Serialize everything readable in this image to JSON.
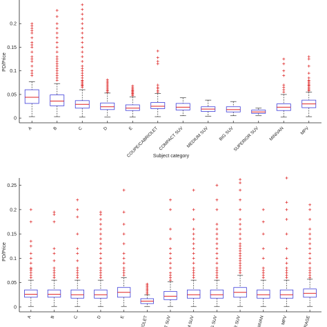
{
  "colors": {
    "box": "#3b3bd9",
    "median": "#e02020",
    "whisker": "#333333",
    "outlier": "#dd2020",
    "axis": "#222222"
  },
  "chart_data": [
    {
      "type": "box",
      "title": "",
      "xlabel": "Subject category",
      "ylabel": "PD/Price",
      "ylim": [
        -0.01,
        0.25
      ],
      "yticks": [
        0,
        0.05,
        0.1,
        0.15,
        0.2
      ],
      "ytick_labels": [
        "0",
        "0.05",
        "0.1",
        "0.15",
        "0.2"
      ],
      "grid": false,
      "categories": [
        "A",
        "B",
        "C",
        "D",
        "E",
        "COUPE/CABRIOLET",
        "COMPACT SUV",
        "MEDIUM SUV",
        "BIG SUV",
        "SUPERIOR SUV",
        "MINIVAN",
        "MPV"
      ],
      "boxes": [
        {
          "whislo": 0.003,
          "q1": 0.031,
          "med": 0.044,
          "q3": 0.06,
          "whishi": 0.077,
          "fliers": [
            0.09,
            0.095,
            0.1,
            0.11,
            0.12,
            0.125,
            0.13,
            0.14,
            0.15,
            0.155,
            0.16,
            0.17,
            0.18,
            0.185,
            0.19,
            0.195,
            0.2
          ]
        },
        {
          "whislo": 0.003,
          "q1": 0.026,
          "med": 0.036,
          "q3": 0.049,
          "whishi": 0.073,
          "fliers": [
            0.08,
            0.085,
            0.09,
            0.095,
            0.1,
            0.105,
            0.11,
            0.115,
            0.12,
            0.125,
            0.13,
            0.14,
            0.15,
            0.16,
            0.17,
            0.18,
            0.19,
            0.2,
            0.215,
            0.228
          ]
        },
        {
          "whislo": 0.002,
          "q1": 0.021,
          "med": 0.029,
          "q3": 0.037,
          "whishi": 0.06,
          "fliers": [
            0.065,
            0.068,
            0.07,
            0.072,
            0.075,
            0.078,
            0.08,
            0.085,
            0.09,
            0.095,
            0.1,
            0.105,
            0.11,
            0.12,
            0.13,
            0.14,
            0.15,
            0.16,
            0.17,
            0.18,
            0.19,
            0.2,
            0.21,
            0.22,
            0.23,
            0.24
          ]
        },
        {
          "whislo": 0.002,
          "q1": 0.018,
          "med": 0.024,
          "q3": 0.032,
          "whishi": 0.053,
          "fliers": [
            0.055,
            0.058,
            0.06,
            0.063,
            0.066,
            0.069,
            0.072,
            0.075,
            0.078,
            0.081
          ]
        },
        {
          "whislo": 0.002,
          "q1": 0.016,
          "med": 0.021,
          "q3": 0.028,
          "whishi": 0.045,
          "fliers": [
            0.048,
            0.05,
            0.052,
            0.054,
            0.056,
            0.058,
            0.06,
            0.062,
            0.065,
            0.068
          ]
        },
        {
          "whislo": 0.003,
          "q1": 0.02,
          "med": 0.025,
          "q3": 0.033,
          "whishi": 0.052,
          "fliers": [
            0.055,
            0.058,
            0.062,
            0.065,
            0.07,
            0.115,
            0.12,
            0.128,
            0.142
          ]
        },
        {
          "whislo": 0.005,
          "q1": 0.017,
          "med": 0.023,
          "q3": 0.031,
          "whishi": 0.043,
          "fliers": []
        },
        {
          "whislo": 0.004,
          "q1": 0.014,
          "med": 0.019,
          "q3": 0.024,
          "whishi": 0.038,
          "fliers": []
        },
        {
          "whislo": 0.005,
          "q1": 0.013,
          "med": 0.018,
          "q3": 0.024,
          "whishi": 0.035,
          "fliers": []
        },
        {
          "whislo": 0.005,
          "q1": 0.01,
          "med": 0.013,
          "q3": 0.017,
          "whishi": 0.021,
          "fliers": []
        },
        {
          "whislo": 0.002,
          "q1": 0.016,
          "med": 0.023,
          "q3": 0.03,
          "whishi": 0.05,
          "fliers": [
            0.055,
            0.06,
            0.065,
            0.07,
            0.09,
            0.1,
            0.115,
            0.125
          ]
        },
        {
          "whislo": 0.003,
          "q1": 0.022,
          "med": 0.03,
          "q3": 0.038,
          "whishi": 0.055,
          "fliers": [
            0.058,
            0.06,
            0.062,
            0.065,
            0.068,
            0.07,
            0.072,
            0.075,
            0.078,
            0.08,
            0.085,
            0.095,
            0.11,
            0.125,
            0.13
          ]
        }
      ]
    },
    {
      "type": "box",
      "title": "",
      "xlabel": "",
      "ylabel": "PD/Price",
      "ylim": [
        -0.01,
        0.265
      ],
      "yticks": [
        0,
        0.05,
        0.1,
        0.15,
        0.2,
        0.25
      ],
      "ytick_labels": [
        "0",
        "0.05",
        "0.1",
        "0.15",
        "0.2",
        "0.25"
      ],
      "grid": false,
      "categories": [
        "A",
        "B",
        "C",
        "D",
        "E",
        "CABRIOLET",
        "MPACT SUV",
        "EDIUM SUV",
        "BIG SUV",
        "PERIOR SUV",
        "MINIVAN",
        "MPV",
        "AVERAGE"
      ],
      "boxes": [
        {
          "whislo": 0.001,
          "q1": 0.02,
          "med": 0.026,
          "q3": 0.035,
          "whishi": 0.055,
          "fliers": [
            0.06,
            0.065,
            0.07,
            0.075,
            0.078,
            0.08,
            0.09,
            0.1,
            0.11,
            0.125,
            0.135,
            0.175,
            0.2
          ]
        },
        {
          "whislo": 0.001,
          "q1": 0.02,
          "med": 0.026,
          "q3": 0.035,
          "whishi": 0.055,
          "fliers": [
            0.06,
            0.065,
            0.07,
            0.075,
            0.08,
            0.095,
            0.11,
            0.12,
            0.175,
            0.19,
            0.195
          ]
        },
        {
          "whislo": 0.001,
          "q1": 0.018,
          "med": 0.025,
          "q3": 0.035,
          "whishi": 0.055,
          "fliers": [
            0.06,
            0.065,
            0.07,
            0.075,
            0.08,
            0.095,
            0.11,
            0.12,
            0.15,
            0.185,
            0.2,
            0.22
          ]
        },
        {
          "whislo": 0.001,
          "q1": 0.018,
          "med": 0.025,
          "q3": 0.035,
          "whishi": 0.055,
          "fliers": [
            0.06,
            0.065,
            0.07,
            0.075,
            0.08,
            0.09,
            0.1,
            0.11,
            0.12,
            0.13,
            0.14,
            0.15,
            0.16,
            0.17,
            0.18,
            0.19,
            0.195
          ]
        },
        {
          "whislo": 0.001,
          "q1": 0.02,
          "med": 0.03,
          "q3": 0.04,
          "whishi": 0.06,
          "fliers": [
            0.065,
            0.07,
            0.075,
            0.08,
            0.09,
            0.1,
            0.11,
            0.13,
            0.15,
            0.17,
            0.195,
            0.24
          ]
        },
        {
          "whislo": 0.001,
          "q1": 0.007,
          "med": 0.012,
          "q3": 0.017,
          "whishi": 0.025,
          "fliers": [
            0.027,
            0.03,
            0.033,
            0.036,
            0.039,
            0.042,
            0.045,
            0.047
          ]
        },
        {
          "whislo": 0.001,
          "q1": 0.015,
          "med": 0.022,
          "q3": 0.032,
          "whishi": 0.052,
          "fliers": [
            0.055,
            0.06,
            0.065,
            0.07,
            0.08,
            0.09,
            0.1,
            0.11,
            0.12,
            0.14,
            0.16,
            0.2,
            0.22
          ]
        },
        {
          "whislo": 0.001,
          "q1": 0.018,
          "med": 0.025,
          "q3": 0.035,
          "whishi": 0.055,
          "fliers": [
            0.06,
            0.065,
            0.07,
            0.075,
            0.08,
            0.09,
            0.1,
            0.11,
            0.12,
            0.13,
            0.14,
            0.15,
            0.16,
            0.18,
            0.2,
            0.24
          ]
        },
        {
          "whislo": 0.001,
          "q1": 0.018,
          "med": 0.025,
          "q3": 0.035,
          "whishi": 0.055,
          "fliers": [
            0.06,
            0.065,
            0.07,
            0.075,
            0.08,
            0.09,
            0.1,
            0.11,
            0.12,
            0.13,
            0.14,
            0.15,
            0.16,
            0.17,
            0.2,
            0.22,
            0.25
          ]
        },
        {
          "whislo": 0.001,
          "q1": 0.02,
          "med": 0.03,
          "q3": 0.04,
          "whishi": 0.065,
          "fliers": [
            0.07,
            0.075,
            0.08,
            0.085,
            0.09,
            0.095,
            0.1,
            0.105,
            0.11,
            0.115,
            0.12,
            0.125,
            0.13,
            0.14,
            0.15,
            0.16,
            0.17,
            0.18,
            0.2,
            0.22,
            0.24,
            0.255,
            0.262
          ]
        },
        {
          "whislo": 0.001,
          "q1": 0.018,
          "med": 0.025,
          "q3": 0.035,
          "whishi": 0.055,
          "fliers": [
            0.06,
            0.065,
            0.07,
            0.075,
            0.08,
            0.1,
            0.12,
            0.15,
            0.175,
            0.2
          ]
        },
        {
          "whislo": 0.001,
          "q1": 0.018,
          "med": 0.025,
          "q3": 0.035,
          "whishi": 0.055,
          "fliers": [
            0.06,
            0.065,
            0.07,
            0.075,
            0.08,
            0.09,
            0.1,
            0.12,
            0.15,
            0.18,
            0.2,
            0.215,
            0.265
          ]
        },
        {
          "whislo": 0.001,
          "q1": 0.02,
          "med": 0.028,
          "q3": 0.037,
          "whishi": 0.057,
          "fliers": [
            0.06,
            0.065,
            0.07,
            0.075,
            0.08,
            0.09,
            0.1,
            0.11,
            0.12,
            0.13,
            0.14,
            0.15,
            0.16,
            0.18,
            0.2,
            0.21
          ]
        }
      ]
    }
  ]
}
